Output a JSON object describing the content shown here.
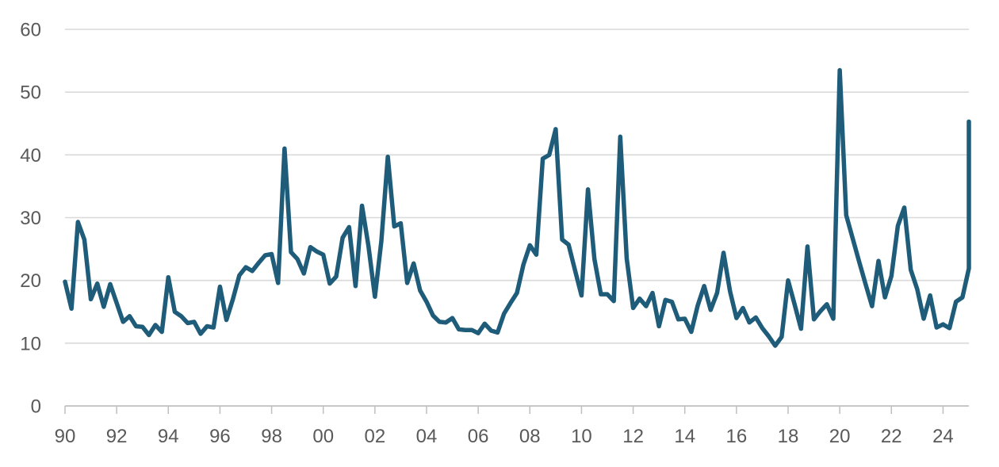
{
  "chart_data": {
    "type": "line",
    "title": "",
    "xlabel": "",
    "ylabel": "",
    "xlim": [
      1990.0,
      2025.0
    ],
    "ylim": [
      0,
      60
    ],
    "y_ticks": [
      0,
      10,
      20,
      30,
      40,
      50,
      60
    ],
    "x_ticks": [
      {
        "value": 1990,
        "label": "90"
      },
      {
        "value": 1992,
        "label": "92"
      },
      {
        "value": 1994,
        "label": "94"
      },
      {
        "value": 1996,
        "label": "96"
      },
      {
        "value": 1998,
        "label": "98"
      },
      {
        "value": 2000,
        "label": "00"
      },
      {
        "value": 2002,
        "label": "02"
      },
      {
        "value": 2004,
        "label": "04"
      },
      {
        "value": 2006,
        "label": "06"
      },
      {
        "value": 2008,
        "label": "08"
      },
      {
        "value": 2010,
        "label": "10"
      },
      {
        "value": 2012,
        "label": "12"
      },
      {
        "value": 2014,
        "label": "14"
      },
      {
        "value": 2016,
        "label": "16"
      },
      {
        "value": 2018,
        "label": "18"
      },
      {
        "value": 2020,
        "label": "20"
      },
      {
        "value": 2022,
        "label": "22"
      },
      {
        "value": 2024,
        "label": "24"
      }
    ],
    "grid": true,
    "legend": "none",
    "colors": {
      "line": "#1f5c7a"
    },
    "series": [
      {
        "x": [
          1990.0,
          1990.25,
          1990.5,
          1990.75,
          1991.0,
          1991.25,
          1991.5,
          1991.75,
          1992.0,
          1992.25,
          1992.5,
          1992.75,
          1993.0,
          1993.25,
          1993.5,
          1993.75,
          1994.0,
          1994.25,
          1994.5,
          1994.75,
          1995.0,
          1995.25,
          1995.5,
          1995.75,
          1996.0,
          1996.25,
          1996.5,
          1996.75,
          1997.0,
          1997.25,
          1997.5,
          1997.75,
          1998.0,
          1998.25,
          1998.5,
          1998.75,
          1999.0,
          1999.25,
          1999.5,
          1999.75,
          2000.0,
          2000.25,
          2000.5,
          2000.75,
          2001.0,
          2001.25,
          2001.5,
          2001.75,
          2002.0,
          2002.25,
          2002.5,
          2002.75,
          2003.0,
          2003.25,
          2003.5,
          2003.75,
          2004.0,
          2004.25,
          2004.5,
          2004.75,
          2005.0,
          2005.25,
          2005.5,
          2005.75,
          2006.0,
          2006.25,
          2006.5,
          2006.75,
          2007.0,
          2007.25,
          2007.5,
          2007.75,
          2008.0,
          2008.25,
          2008.5,
          2008.75,
          2009.0,
          2009.25,
          2009.5,
          2009.75,
          2010.0,
          2010.25,
          2010.5,
          2010.75,
          2011.0,
          2011.25,
          2011.5,
          2011.75,
          2012.0,
          2012.25,
          2012.5,
          2012.75,
          2013.0,
          2013.25,
          2013.5,
          2013.75,
          2014.0,
          2014.25,
          2014.5,
          2014.75,
          2015.0,
          2015.25,
          2015.5,
          2015.75,
          2016.0,
          2016.25,
          2016.5,
          2016.75,
          2017.0,
          2017.25,
          2017.5,
          2017.75,
          2018.0,
          2018.25,
          2018.5,
          2018.75,
          2019.0,
          2019.25,
          2019.5,
          2019.75,
          2020.0,
          2020.25,
          2020.5,
          2020.75,
          2021.0,
          2021.25,
          2021.5,
          2021.75,
          2022.0,
          2022.25,
          2022.5,
          2022.75,
          2023.0,
          2023.25,
          2023.5,
          2023.75,
          2024.0,
          2024.25,
          2024.5,
          2024.75,
          2025.0,
          2025.0
        ],
        "values": [
          19.8,
          15.5,
          29.3,
          26.5,
          17.0,
          19.5,
          15.8,
          19.4,
          16.4,
          13.4,
          14.3,
          12.7,
          12.6,
          11.3,
          12.9,
          11.8,
          20.5,
          15.0,
          14.3,
          13.2,
          13.4,
          11.5,
          12.7,
          12.5,
          19.0,
          13.7,
          17.0,
          20.8,
          22.1,
          21.5,
          22.8,
          24.0,
          24.2,
          19.6,
          41.0,
          24.5,
          23.4,
          21.1,
          25.3,
          24.6,
          24.1,
          19.5,
          20.6,
          26.8,
          28.5,
          19.1,
          31.9,
          25.5,
          17.4,
          26.3,
          39.7,
          28.6,
          29.1,
          19.6,
          22.7,
          18.4,
          16.6,
          14.4,
          13.4,
          13.3,
          14.0,
          12.2,
          12.1,
          12.1,
          11.6,
          13.1,
          12.0,
          11.7,
          14.7,
          16.4,
          18.0,
          22.5,
          25.6,
          24.1,
          39.4,
          40.0,
          44.1,
          26.5,
          25.7,
          21.6,
          17.6,
          34.5,
          23.4,
          17.8,
          17.8,
          16.7,
          42.9,
          23.5,
          15.6,
          17.1,
          15.9,
          18.0,
          12.7,
          16.9,
          16.6,
          13.8,
          13.9,
          11.8,
          16.0,
          19.1,
          15.3,
          18.0,
          24.4,
          18.3,
          14.0,
          15.6,
          13.3,
          14.1,
          12.4,
          11.1,
          9.6,
          11.0,
          20.0,
          16.2,
          12.3,
          25.4,
          13.8,
          15.1,
          16.2,
          13.9,
          53.5,
          30.4,
          26.7,
          23.0,
          19.4,
          15.9,
          23.1,
          17.3,
          20.7,
          28.7,
          31.6,
          21.7,
          18.6,
          13.9,
          17.6,
          12.5,
          13.0,
          12.4,
          16.6,
          17.3,
          21.9,
          45.3
        ]
      }
    ]
  }
}
